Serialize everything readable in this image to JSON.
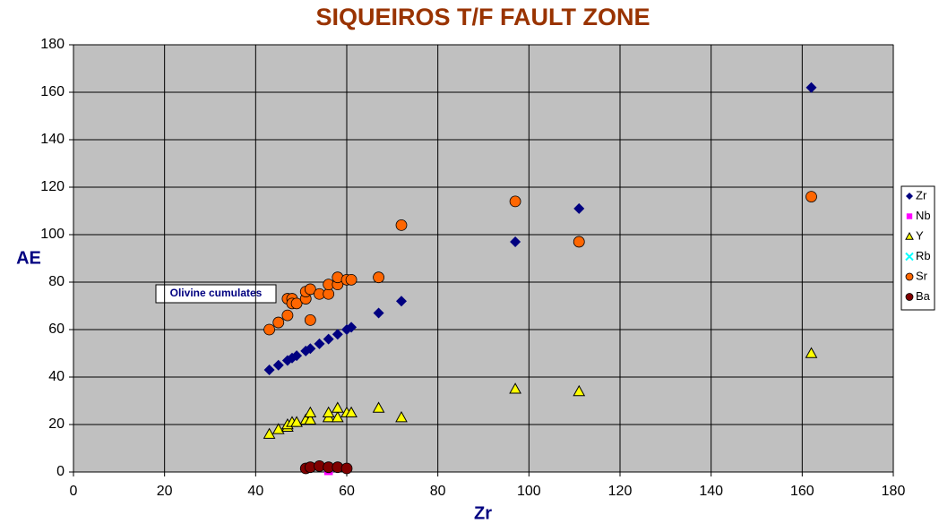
{
  "chart_data": {
    "type": "scatter",
    "title": "SIQUEIROS T/F FAULT ZONE",
    "x_label": "Zr",
    "y_label": "AE",
    "annotation": "Olivine cumulates",
    "xlim": [
      0,
      180
    ],
    "ylim": [
      0,
      180
    ],
    "xticks": [
      0,
      20,
      40,
      60,
      80,
      100,
      120,
      140,
      160,
      180
    ],
    "yticks": [
      0,
      20,
      40,
      60,
      80,
      100,
      120,
      140,
      160,
      180
    ],
    "grid": true,
    "legend": "right",
    "series": [
      {
        "name": "Zr",
        "color": "#000080",
        "marker": "diamond",
        "x": [
          43,
          45,
          47,
          48,
          49,
          51,
          52,
          54,
          56,
          58,
          60,
          61,
          67,
          72,
          97,
          111,
          162
        ],
        "values": [
          43,
          45,
          47,
          48,
          49,
          51,
          52,
          54,
          56,
          58,
          60,
          61,
          67,
          72,
          97,
          111,
          162
        ]
      },
      {
        "name": "Nb",
        "color": "#ff00ff",
        "marker": "square",
        "x": [
          56
        ],
        "values": [
          0.5
        ]
      },
      {
        "name": "Y",
        "color": "#ffff00",
        "marker": "triangle",
        "x": [
          43,
          45,
          47,
          47,
          48,
          49,
          51,
          52,
          52,
          56,
          56,
          58,
          58,
          60,
          61,
          67,
          72,
          97,
          111,
          162
        ],
        "values": [
          16,
          18,
          19,
          20,
          21,
          21,
          22,
          22,
          25,
          23,
          25,
          23,
          27,
          25,
          25,
          27,
          23,
          35,
          34,
          50
        ]
      },
      {
        "name": "Rb",
        "color": "#00ffff",
        "marker": "x",
        "x": [],
        "values": []
      },
      {
        "name": "Sr",
        "color": "#ff6600",
        "marker": "circle",
        "x": [
          43,
          45,
          47,
          47,
          48,
          48,
          49,
          51,
          51,
          52,
          52,
          54,
          56,
          56,
          58,
          58,
          60,
          61,
          67,
          72,
          97,
          111,
          162
        ],
        "values": [
          60,
          63,
          66,
          73,
          73,
          71,
          71,
          73,
          76,
          77,
          64,
          75,
          75,
          79,
          79,
          82,
          81,
          81,
          82,
          104,
          114,
          97,
          116
        ]
      },
      {
        "name": "Ba",
        "color": "#800000",
        "marker": "circle",
        "x": [
          51,
          52,
          54,
          56,
          58,
          60
        ],
        "values": [
          1.5,
          2,
          2.5,
          2,
          2,
          1.5
        ]
      }
    ]
  }
}
